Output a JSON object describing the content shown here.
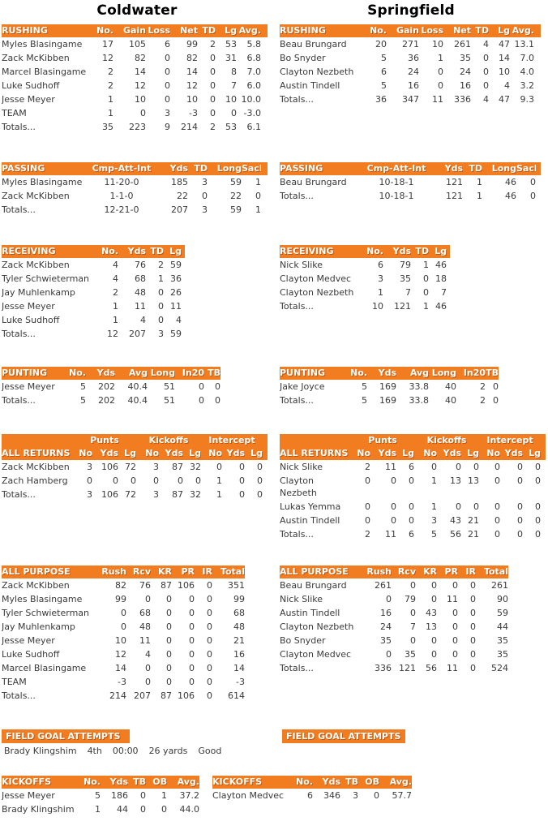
{
  "colors": {
    "accent": "#F27D21",
    "header_text": "#FFFFFF",
    "body_text": "#3A3A3A",
    "title_text": "#000000"
  },
  "teams": [
    {
      "name": "Coldwater",
      "rushing": {
        "title": "RUSHING",
        "headers": [
          "No.",
          "Gain",
          "Loss",
          "Net",
          "TD",
          "Lg",
          "Avg."
        ],
        "rows": [
          [
            "Myles Blasingame",
            "17",
            "105",
            "6",
            "99",
            "2",
            "53",
            "5.8"
          ],
          [
            "Zack McKibben",
            "12",
            "82",
            "0",
            "82",
            "0",
            "31",
            "6.8"
          ],
          [
            "Marcel Blasingame",
            "2",
            "14",
            "0",
            "14",
            "0",
            "8",
            "7.0"
          ],
          [
            "Luke Sudhoff",
            "2",
            "12",
            "0",
            "12",
            "0",
            "7",
            "6.0"
          ],
          [
            "Jesse Meyer",
            "1",
            "10",
            "0",
            "10",
            "0",
            "10",
            "10.0"
          ],
          [
            "TEAM",
            "1",
            "0",
            "3",
            "-3",
            "0",
            "0",
            "-3.0"
          ],
          [
            "Totals...",
            "35",
            "223",
            "9",
            "214",
            "2",
            "53",
            "6.1"
          ]
        ]
      },
      "passing": {
        "title": "PASSING",
        "headers": [
          "Cmp-Att-Int",
          "Yds",
          "TD",
          "Long",
          "Sack"
        ],
        "rows": [
          [
            "Myles Blasingame",
            "11-20-0",
            "185",
            "3",
            "59",
            "1"
          ],
          [
            "Zack McKibben",
            "1-1-0",
            "22",
            "0",
            "22",
            "0"
          ],
          [
            "Totals...",
            "12-21-0",
            "207",
            "3",
            "59",
            "1"
          ]
        ]
      },
      "receiving": {
        "title": "RECEIVING",
        "headers": [
          "No.",
          "Yds",
          "TD",
          "Lg"
        ],
        "rows": [
          [
            "Zack McKibben",
            "4",
            "76",
            "2",
            "59"
          ],
          [
            "Tyler Schwieterman",
            "4",
            "68",
            "1",
            "36"
          ],
          [
            "Jay Muhlenkamp",
            "2",
            "48",
            "0",
            "26"
          ],
          [
            "Jesse Meyer",
            "1",
            "11",
            "0",
            "11"
          ],
          [
            "Luke Sudhoff",
            "1",
            "4",
            "0",
            "4"
          ],
          [
            "Totals...",
            "12",
            "207",
            "3",
            "59"
          ]
        ]
      },
      "punting": {
        "title": "PUNTING",
        "headers": [
          "No.",
          "Yds",
          "Avg",
          "Long",
          "In20",
          "TB"
        ],
        "rows": [
          [
            "Jesse Meyer",
            "5",
            "202",
            "40.4",
            "51",
            "0",
            "0"
          ],
          [
            "Totals...",
            "5",
            "202",
            "40.4",
            "51",
            "0",
            "0"
          ]
        ]
      },
      "all_returns": {
        "title": "ALL RETURNS",
        "group_headers": [
          "Punts",
          "Kickoffs",
          "Intercept"
        ],
        "headers": [
          "No",
          "Yds",
          "Lg",
          "No",
          "Yds",
          "Lg",
          "No",
          "Yds",
          "Lg"
        ],
        "rows": [
          [
            "Zack McKibben",
            "3",
            "106",
            "72",
            "3",
            "87",
            "32",
            "0",
            "0",
            "0"
          ],
          [
            "Zach Hamberg",
            "0",
            "0",
            "0",
            "0",
            "0",
            "0",
            "1",
            "0",
            "0"
          ],
          [
            "Totals...",
            "3",
            "106",
            "72",
            "3",
            "87",
            "32",
            "1",
            "0",
            "0"
          ]
        ]
      },
      "all_purpose": {
        "title": "ALL PURPOSE",
        "headers": [
          "Rush",
          "Rcv",
          "KR",
          "PR",
          "IR",
          "Total"
        ],
        "rows": [
          [
            "Zack McKibben",
            "82",
            "76",
            "87",
            "106",
            "0",
            "351"
          ],
          [
            "Myles Blasingame",
            "99",
            "0",
            "0",
            "0",
            "0",
            "99"
          ],
          [
            "Tyler Schwieterman",
            "0",
            "68",
            "0",
            "0",
            "0",
            "68"
          ],
          [
            "Jay Muhlenkamp",
            "0",
            "48",
            "0",
            "0",
            "0",
            "48"
          ],
          [
            "Jesse Meyer",
            "10",
            "11",
            "0",
            "0",
            "0",
            "21"
          ],
          [
            "Luke Sudhoff",
            "12",
            "4",
            "0",
            "0",
            "0",
            "16"
          ],
          [
            "Marcel Blasingame",
            "14",
            "0",
            "0",
            "0",
            "0",
            "14"
          ],
          [
            "TEAM",
            "-3",
            "0",
            "0",
            "0",
            "0",
            "-3"
          ],
          [
            "Totals...",
            "214",
            "207",
            "87",
            "106",
            "0",
            "614"
          ]
        ]
      },
      "field_goals": {
        "title": "FIELD GOAL ATTEMPTS",
        "attempts": [
          {
            "player": "Brady Klingshim",
            "quarter": "4th",
            "time": "00:00",
            "distance": "26 yards",
            "result": "Good"
          }
        ]
      },
      "kickoffs": {
        "title": "KICKOFFS",
        "headers": [
          "No.",
          "Yds",
          "TB",
          "OB",
          "Avg."
        ],
        "rows": [
          [
            "Jesse Meyer",
            "5",
            "186",
            "0",
            "1",
            "37.2"
          ],
          [
            "Brady Klingshim",
            "1",
            "44",
            "0",
            "0",
            "44.0"
          ]
        ]
      }
    },
    {
      "name": "Springfield",
      "rushing": {
        "title": "RUSHING",
        "headers": [
          "No.",
          "Gain",
          "Loss",
          "Net",
          "TD",
          "Lg",
          "Avg."
        ],
        "rows": [
          [
            "Beau Brungard",
            "20",
            "271",
            "10",
            "261",
            "4",
            "47",
            "13.1"
          ],
          [
            "Bo Snyder",
            "5",
            "36",
            "1",
            "35",
            "0",
            "14",
            "7.0"
          ],
          [
            "Clayton Nezbeth",
            "6",
            "24",
            "0",
            "24",
            "0",
            "10",
            "4.0"
          ],
          [
            "Austin Tindell",
            "5",
            "16",
            "0",
            "16",
            "0",
            "4",
            "3.2"
          ],
          [
            "Totals...",
            "36",
            "347",
            "11",
            "336",
            "4",
            "47",
            "9.3"
          ]
        ]
      },
      "passing": {
        "title": "PASSING",
        "headers": [
          "Cmp-Att-Int",
          "Yds",
          "TD",
          "Long",
          "Sack"
        ],
        "rows": [
          [
            "Beau Brungard",
            "10-18-1",
            "121",
            "1",
            "46",
            "0"
          ],
          [
            "Totals...",
            "10-18-1",
            "121",
            "1",
            "46",
            "0"
          ]
        ]
      },
      "receiving": {
        "title": "RECEIVING",
        "headers": [
          "No.",
          "Yds",
          "TD",
          "Lg"
        ],
        "rows": [
          [
            "Nick Slike",
            "6",
            "79",
            "1",
            "46"
          ],
          [
            "Clayton Medvec",
            "3",
            "35",
            "0",
            "18"
          ],
          [
            "Clayton Nezbeth",
            "1",
            "7",
            "0",
            "7"
          ],
          [
            "Totals...",
            "10",
            "121",
            "1",
            "46"
          ]
        ]
      },
      "punting": {
        "title": "PUNTING",
        "headers": [
          "No.",
          "Yds",
          "Avg",
          "Long",
          "In20",
          "TB"
        ],
        "rows": [
          [
            "Jake Joyce",
            "5",
            "169",
            "33.8",
            "40",
            "2",
            "0"
          ],
          [
            "Totals...",
            "5",
            "169",
            "33.8",
            "40",
            "2",
            "0"
          ]
        ]
      },
      "all_returns": {
        "title": "ALL RETURNS",
        "group_headers": [
          "Punts",
          "Kickoffs",
          "Intercept"
        ],
        "headers": [
          "No",
          "Yds",
          "Lg",
          "No",
          "Yds",
          "Lg",
          "No",
          "Yds",
          "Lg"
        ],
        "rows": [
          [
            "Nick Slike",
            "2",
            "11",
            "6",
            "0",
            "0",
            "0",
            "0",
            "0",
            "0"
          ],
          [
            "Clayton Nezbeth",
            "0",
            "0",
            "0",
            "1",
            "13",
            "13",
            "0",
            "0",
            "0"
          ],
          [
            "Lukas Yemma",
            "0",
            "0",
            "0",
            "1",
            "0",
            "0",
            "0",
            "0",
            "0"
          ],
          [
            "Austin Tindell",
            "0",
            "0",
            "0",
            "3",
            "43",
            "21",
            "0",
            "0",
            "0"
          ],
          [
            "Totals...",
            "2",
            "11",
            "6",
            "5",
            "56",
            "21",
            "0",
            "0",
            "0"
          ]
        ]
      },
      "all_purpose": {
        "title": "ALL PURPOSE",
        "headers": [
          "Rush",
          "Rcv",
          "KR",
          "PR",
          "IR",
          "Total"
        ],
        "rows": [
          [
            "Beau Brungard",
            "261",
            "0",
            "0",
            "0",
            "0",
            "261"
          ],
          [
            "Nick Slike",
            "0",
            "79",
            "0",
            "11",
            "0",
            "90"
          ],
          [
            "Austin Tindell",
            "16",
            "0",
            "43",
            "0",
            "0",
            "59"
          ],
          [
            "Clayton Nezbeth",
            "24",
            "7",
            "13",
            "0",
            "0",
            "44"
          ],
          [
            "Bo Snyder",
            "35",
            "0",
            "0",
            "0",
            "0",
            "35"
          ],
          [
            "Clayton Medvec",
            "0",
            "35",
            "0",
            "0",
            "0",
            "35"
          ],
          [
            "Totals...",
            "336",
            "121",
            "56",
            "11",
            "0",
            "524"
          ]
        ]
      },
      "field_goals": {
        "title": "FIELD GOAL ATTEMPTS",
        "attempts": []
      },
      "kickoffs": {
        "title": "KICKOFFS",
        "headers": [
          "No.",
          "Yds",
          "TB",
          "OB",
          "Avg."
        ],
        "rows": [
          [
            "Clayton Medvec",
            "6",
            "346",
            "3",
            "0",
            "57.7"
          ]
        ]
      }
    }
  ]
}
